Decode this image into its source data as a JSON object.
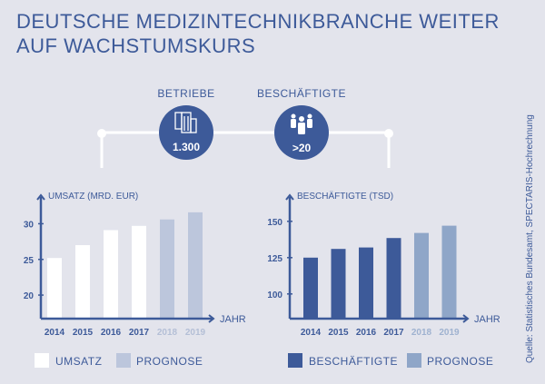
{
  "title": {
    "line1": "DEUTSCHE MEDIZINTECHNIKBRANCHE WEITER",
    "line2": "AUF WACHSTUMSKURS"
  },
  "highlights": [
    {
      "label": "BETRIEBE",
      "value": "1.300",
      "icon": "buildings-icon"
    },
    {
      "label": "BESCHÄFTIGTE",
      "value": ">20",
      "icon": "people-icon"
    }
  ],
  "source": "Quelle: Statistisches Bundesamt, SPECTARIS-Hochrechnung",
  "colors": {
    "background": "#e3e4ec",
    "primary": "#3d5a99",
    "left_actual": "#ffffff",
    "left_forecast": "#bcc6dc",
    "right_actual": "#3d5a99",
    "right_forecast": "#8fa6c8"
  },
  "chart_data": [
    {
      "type": "bar",
      "title": "",
      "ylabel": "UMSATZ (MRD. EUR)",
      "xlabel": "JAHR",
      "categories": [
        "2014",
        "2015",
        "2016",
        "2017",
        "2018",
        "2019"
      ],
      "values": [
        25.2,
        27.0,
        29.1,
        29.7,
        30.6,
        31.6
      ],
      "forecast": [
        false,
        false,
        false,
        false,
        true,
        true
      ],
      "yticks": [
        20,
        25,
        30
      ],
      "ylim": [
        16.7,
        34
      ],
      "legend": [
        "UMSATZ",
        "PROGNOSE"
      ],
      "legend_position": "bottom"
    },
    {
      "type": "bar",
      "title": "",
      "ylabel": "BESCHÄFTIGTE (TSD)",
      "xlabel": "JAHR",
      "categories": [
        "2014",
        "2015",
        "2016",
        "2017",
        "2018",
        "2019"
      ],
      "values": [
        125,
        131,
        132,
        138.5,
        142,
        147
      ],
      "forecast": [
        false,
        false,
        false,
        false,
        true,
        true
      ],
      "yticks": [
        100,
        125,
        150
      ],
      "ylim": [
        83,
        168
      ],
      "legend": [
        "BESCHÄFTIGTE",
        "PROGNOSE"
      ],
      "legend_position": "bottom"
    }
  ]
}
